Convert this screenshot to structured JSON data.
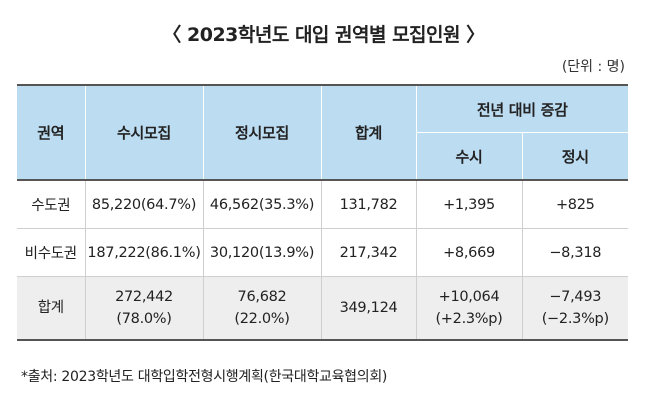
{
  "title": "〈 2023학년도 대입 권역별 모집인원 〉",
  "unit": "(단위 : 명)",
  "table": {
    "headers": {
      "region": "권역",
      "susi": "수시모집",
      "jeongsi": "정시모집",
      "total": "합계",
      "change": "전년 대비 증감",
      "change_susi": "수시",
      "change_jeongsi": "정시"
    },
    "rows": [
      {
        "region": "수도권",
        "susi": "85,220(64.7%)",
        "jeongsi": "46,562(35.3%)",
        "total": "131,782",
        "change_susi": "+1,395",
        "change_jeongsi": "+825"
      },
      {
        "region": "비수도권",
        "susi": "187,222(86.1%)",
        "jeongsi": "30,120(13.9%)",
        "total": "217,342",
        "change_susi": "+8,669",
        "change_jeongsi": "−8,318"
      }
    ],
    "total_row": {
      "region": "합계",
      "susi_value": "272,442",
      "susi_pct": "(78.0%)",
      "jeongsi_value": "76,682",
      "jeongsi_pct": "(22.0%)",
      "total": "349,124",
      "change_susi_value": "+10,064",
      "change_susi_pct": "(+2.3%p)",
      "change_jeongsi_value": "−7,493",
      "change_jeongsi_pct": "(−2.3%p)"
    }
  },
  "footnote": "*출처: 2023학년도 대학입학전형시행계획(한국대학교육협의회)"
}
